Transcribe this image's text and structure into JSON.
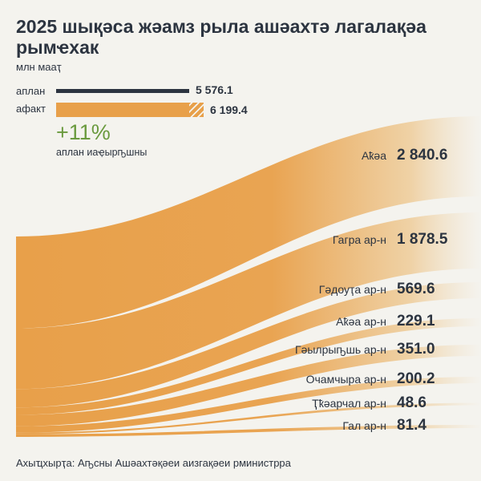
{
  "title": "2025 шықәса жәамз рыла ашәахтә лагалақәа рымҽхак",
  "unit": "млн мааҭ",
  "legend": {
    "plan_label": "аплан",
    "plan_value": "5 576.1",
    "plan_color": "#2c3440",
    "fact_label": "афакт",
    "fact_value": "6 199.4",
    "fact_color": "#e8a04a"
  },
  "percent": "+11%",
  "percent_label": "аплан иаҿырҧшны",
  "source": "Ахыҵхырҭа: Аҧсны Ашәахтәқәеи аизгақәеи рминистрра",
  "chart_data": {
    "type": "sankey",
    "total": 6199.4,
    "plan": 5576.1,
    "categories": [
      "Аҟәа",
      "Гагра ар-н",
      "Гәдоуҭа ар-н",
      "Аҟәа ар-н",
      "Гәылрыҧшь ар-н",
      "Очамчыра ар-н",
      "Ткуарчал ар-н",
      "Гал ар-н"
    ],
    "labels": [
      "Аҟәа",
      "Гагра ар-н",
      "Гәдоуҭа ар-н",
      "Аҟәа ар-н",
      "Гәылрыҧшь ар-н",
      "Очамчыра ар-н",
      "Ҭҟәарчал ар-н",
      "Гал ар-н"
    ],
    "values": [
      2840.6,
      1878.5,
      569.6,
      229.1,
      351.0,
      200.2,
      48.6,
      81.4
    ],
    "value_labels": [
      "2 840.6",
      "1 878.5",
      "569.6",
      "229.1",
      "351.0",
      "200.2",
      "48.6",
      "81.4"
    ],
    "flow_color": "#e8a04a"
  }
}
